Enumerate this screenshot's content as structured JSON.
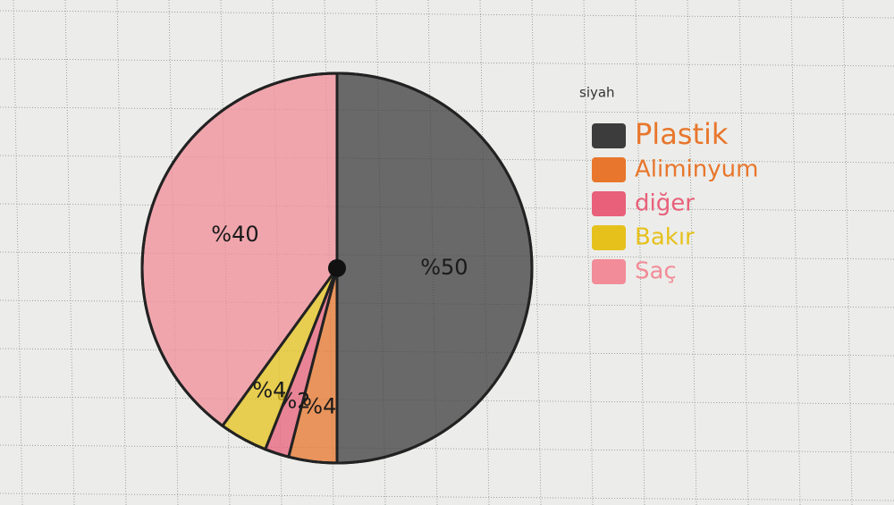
{
  "chart_data": {
    "type": "pie",
    "legend_note": "siyah",
    "categories": [
      "Plastik",
      "Aliminyum",
      "diğer",
      "Bakır",
      "Saç"
    ],
    "values": [
      50,
      4,
      2,
      4,
      40
    ],
    "value_labels": [
      "%50",
      "%4",
      "%2",
      "%4",
      "%40"
    ],
    "colors": [
      "#3c3c3c",
      "#e8762c",
      "#e8607a",
      "#e6c11c",
      "#f28c98"
    ],
    "legend": "right"
  }
}
